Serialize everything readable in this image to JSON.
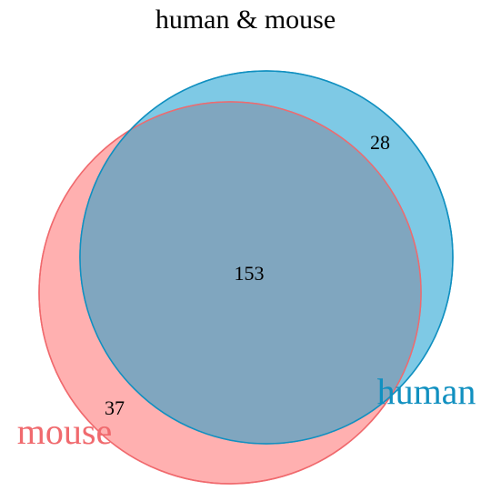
{
  "title": "human & mouse",
  "colors": {
    "human_fill": "#2FA8D5",
    "human_stroke": "#1190C0",
    "mouse_fill": "#FF7F80",
    "mouse_stroke": "#F06A6E",
    "overlap_fill": "#80A6BF"
  },
  "sets": {
    "human": {
      "label": "human",
      "only_count": "28"
    },
    "mouse": {
      "label": "mouse",
      "only_count": "37"
    }
  },
  "intersection_count": "153"
}
